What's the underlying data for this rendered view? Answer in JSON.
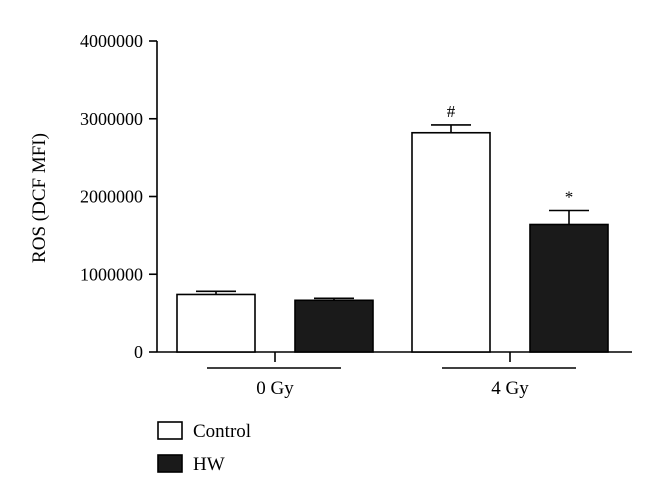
{
  "chart_data": {
    "type": "bar",
    "ylabel": "ROS (DCF MFI)",
    "ylim": [
      0,
      4000000
    ],
    "yticks": [
      0,
      1000000,
      2000000,
      3000000,
      4000000
    ],
    "ytick_labels": [
      "0",
      "1000000",
      "2000000",
      "3000000",
      "4000000"
    ],
    "categories": [
      "0 Gy",
      "4 Gy"
    ],
    "series": [
      {
        "name": "Control",
        "color": "#ffffff",
        "values": [
          740000,
          2820000
        ],
        "errors": [
          40000,
          100000
        ]
      },
      {
        "name": "HW",
        "color": "#1a1a1a",
        "values": [
          665000,
          1640000
        ],
        "errors": [
          25000,
          180000
        ]
      }
    ],
    "annotations": [
      {
        "category": "4 Gy",
        "series": "Control",
        "text": "#"
      },
      {
        "category": "4 Gy",
        "series": "HW",
        "text": "*"
      }
    ],
    "legend_position": "bottom-left",
    "grid": false
  }
}
